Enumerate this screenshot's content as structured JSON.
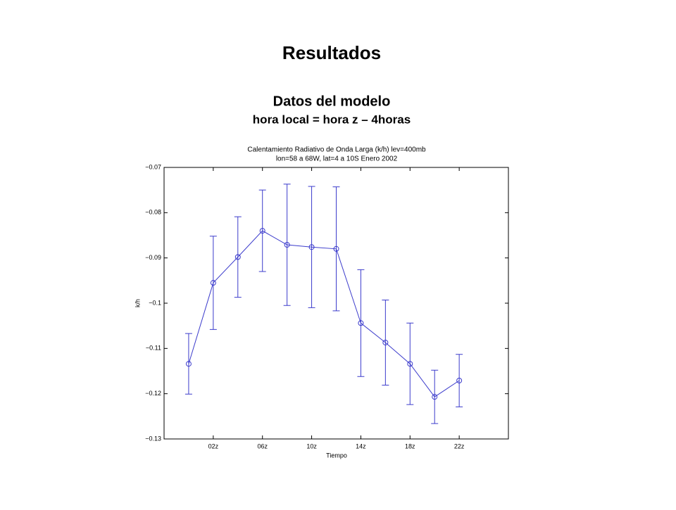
{
  "slide": {
    "title": "Resultados",
    "subtitle": "Datos del modelo",
    "note": "hora local = hora z – 4horas"
  },
  "chart_data": {
    "type": "line",
    "title": [
      "Calentamiento Radiativo de Onda Larga (k/h) lev=400mb",
      "lon=58 a 68W, lat=4 a 10S Enero 2002"
    ],
    "xlabel": "Tiempo",
    "ylabel": "k/h",
    "x": [
      0,
      2,
      4,
      6,
      8,
      10,
      12,
      14,
      16,
      18,
      20,
      22
    ],
    "series": [
      {
        "color": "#3c3ccc",
        "values": [
          -0.1134,
          -0.0955,
          -0.0898,
          -0.084,
          -0.0871,
          -0.0876,
          -0.088,
          -0.1044,
          -0.1087,
          -0.1134,
          -0.1207,
          -0.1171
        ],
        "errors": [
          0.0067,
          0.0103,
          0.0089,
          0.009,
          0.0134,
          0.0134,
          0.0137,
          0.0118,
          0.0094,
          0.009,
          0.0059,
          0.0058
        ]
      }
    ],
    "xlim": [
      -2,
      26
    ],
    "xticks": [
      {
        "value": 2,
        "label": "02z"
      },
      {
        "value": 6,
        "label": "06z"
      },
      {
        "value": 10,
        "label": "10z"
      },
      {
        "value": 14,
        "label": "14z"
      },
      {
        "value": 18,
        "label": "18z"
      },
      {
        "value": 22,
        "label": "22z"
      }
    ],
    "ylim": [
      -0.13,
      -0.07
    ],
    "yticks": [
      {
        "value": -0.13,
        "label": "−0.13"
      },
      {
        "value": -0.12,
        "label": "−0.12"
      },
      {
        "value": -0.11,
        "label": "−0.11"
      },
      {
        "value": -0.1,
        "label": "−0.1"
      },
      {
        "value": -0.09,
        "label": "−0.09"
      },
      {
        "value": -0.08,
        "label": "−0.08"
      },
      {
        "value": -0.07,
        "label": "−0.07"
      }
    ]
  }
}
